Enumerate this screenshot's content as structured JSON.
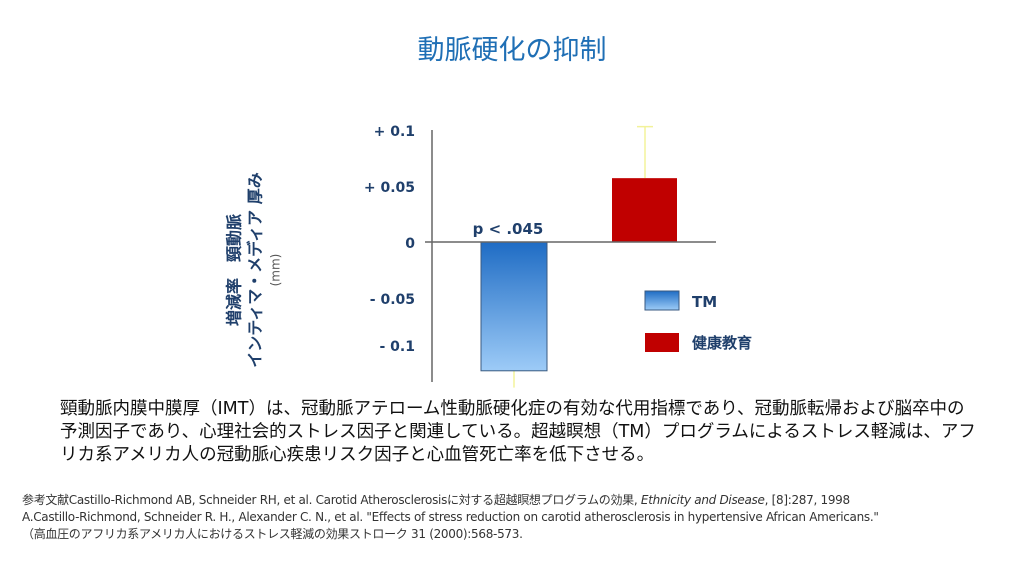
{
  "title": "動脈硬化の抑制",
  "chart_data": {
    "type": "bar",
    "title": "",
    "ylabel": [
      "増減率　頸動脈",
      "インティマ・メディア 厚み",
      "(mm)"
    ],
    "yticks": [
      {
        "v": 0.1,
        "label": "+ 0.1"
      },
      {
        "v": 0.05,
        "label": "+ 0.05"
      },
      {
        "v": 0,
        "label": "0"
      },
      {
        "v": -0.05,
        "label": "- 0.05"
      },
      {
        "v": -0.1,
        "label": "- 0.1"
      }
    ],
    "ylim": [
      -0.12,
      0.1
    ],
    "categories": [
      "TM",
      "健康教育"
    ],
    "series": [
      {
        "name": "TM",
        "value": -0.115,
        "error_low": -0.13,
        "color": "#3f88d6"
      },
      {
        "name": "健康教育",
        "value": 0.057,
        "error_high": 0.103,
        "color": "#c00000"
      }
    ],
    "annotation": "p < .045",
    "legend": "right"
  },
  "body": "頸動脈内膜中膜厚（IMT）は、冠動脈アテローム性動脈硬化症の有効な代用指標であり、冠動脈転帰および脳卒中の予測因子であり、心理社会的ストレス因子と関連している。超越瞑想（TM）プログラムによるストレス軽減は、アフリカ系アメリカ人の冠動脈心疾患リスク因子と心血管死亡率を低下させる。",
  "refs": {
    "r1a": "参考文献Castillo-Richmond AB, Schneider RH, et al. Carotid Atherosclerosisに対する超越瞑想プログラムの効果, ",
    "r1b": "Ethnicity and Disease",
    "r1c": ", [8]:287, 1998",
    "r2": "A.Castillo-Richmond, Schneider R. H., Alexander C. N., et al. \"Effects of stress reduction on carotid atherosclerosis in hypertensive African Americans.\"",
    "r3": "（高血圧のアフリカ系アメリカ人におけるストレス軽減の効果ストローク 31 (2000):568-573."
  }
}
